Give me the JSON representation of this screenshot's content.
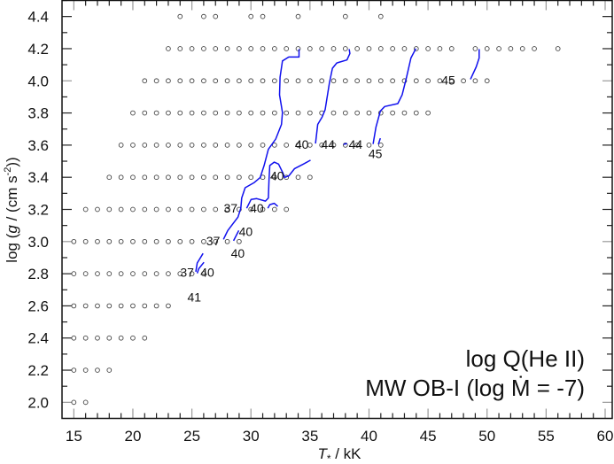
{
  "chart_data": {
    "type": "scatter",
    "title": "",
    "xlabel": {
      "symbol": "T",
      "sub": "*",
      "unit": " / kK"
    },
    "ylabel": {
      "pre": "log (",
      "var": "g",
      "mid": " / (cm s",
      "sup": "-2",
      "post": "))"
    },
    "xlim": [
      14.0,
      60.6
    ],
    "ylim": [
      1.9,
      4.5
    ],
    "xticks": [
      "15",
      "20",
      "25",
      "30",
      "35",
      "40",
      "45",
      "50",
      "55",
      "60"
    ],
    "yticks": [
      "2.0",
      "2.2",
      "2.4",
      "2.6",
      "2.8",
      "3.0",
      "3.2",
      "3.4",
      "3.6",
      "3.8",
      "4.0",
      "4.2",
      "4.4"
    ],
    "grid": false,
    "annotations": [
      "log Q(He II)",
      "MW OB-I (log Ṁ = -7)"
    ],
    "colors": {
      "points": "#444444",
      "contours": "#1010ee",
      "frame": "#111111"
    },
    "model_grid": [
      {
        "logg": 4.4,
        "T": [
          24,
          26,
          27,
          30,
          31,
          34,
          38,
          41
        ]
      },
      {
        "logg": 4.2,
        "T_range": [
          23,
          47
        ],
        "T_extra": [
          49,
          50,
          51,
          52,
          53,
          54,
          56
        ]
      },
      {
        "logg": 4.0,
        "T_range": [
          21,
          50
        ]
      },
      {
        "logg": 3.8,
        "T_range": [
          20,
          45
        ]
      },
      {
        "logg": 3.6,
        "T_range": [
          19,
          41
        ]
      },
      {
        "logg": 3.4,
        "T_range": [
          18,
          35
        ]
      },
      {
        "logg": 3.2,
        "T_range": [
          16,
          33
        ]
      },
      {
        "logg": 3.0,
        "T_range": [
          15,
          29
        ]
      },
      {
        "logg": 2.8,
        "T_range": [
          15,
          26
        ]
      },
      {
        "logg": 2.6,
        "T_range": [
          15,
          23
        ]
      },
      {
        "logg": 2.4,
        "T_range": [
          15,
          21
        ]
      },
      {
        "logg": 2.2,
        "T_range": [
          15,
          18
        ]
      },
      {
        "logg": 2.0,
        "T_range": [
          15,
          16
        ]
      }
    ],
    "contours": [
      {
        "level": 40,
        "points": [
          [
            34.07,
            4.197
          ],
          [
            34.07,
            4.148
          ],
          [
            33.2,
            4.148
          ],
          [
            32.67,
            4.124
          ],
          [
            32.47,
            4.023
          ],
          [
            32.42,
            3.913
          ],
          [
            32.67,
            3.803
          ],
          [
            32.59,
            3.729
          ],
          [
            32.1,
            3.638
          ],
          [
            31.48,
            3.574
          ],
          [
            31.12,
            3.473
          ],
          [
            30.79,
            3.399
          ],
          [
            30.25,
            3.366
          ],
          [
            29.51,
            3.335
          ],
          [
            29.22,
            3.271
          ],
          [
            29.14,
            3.207
          ],
          [
            28.9,
            3.152
          ],
          [
            28.04,
            3.069
          ],
          [
            27.67,
            3.014
          ]
        ]
      },
      {
        "level": 40,
        "points": [
          [
            29.64,
            3.207
          ],
          [
            30.01,
            3.262
          ],
          [
            30.49,
            3.267
          ],
          [
            31.23,
            3.252
          ],
          [
            31.48,
            3.271
          ],
          [
            31.53,
            3.381
          ],
          [
            31.6,
            3.473
          ],
          [
            31.97,
            3.494
          ],
          [
            32.34,
            3.482
          ],
          [
            32.71,
            3.427
          ],
          [
            32.84,
            3.399
          ],
          [
            33.21,
            3.409
          ],
          [
            33.7,
            3.454
          ],
          [
            34.44,
            3.482
          ],
          [
            35.05,
            3.506
          ]
        ]
      },
      {
        "level": 41,
        "points": [
          [
            31.43,
            3.207
          ],
          [
            31.6,
            3.23
          ],
          [
            31.97,
            3.238
          ],
          [
            32.27,
            3.219
          ]
        ]
      },
      {
        "level": 44,
        "points": [
          [
            38.32,
            4.197
          ],
          [
            38.38,
            4.17
          ],
          [
            38.13,
            4.13
          ],
          [
            37.27,
            4.111
          ],
          [
            36.9,
            4.078
          ],
          [
            36.65,
            3.987
          ],
          [
            36.29,
            3.821
          ],
          [
            36.03,
            3.775
          ],
          [
            35.66,
            3.729
          ],
          [
            35.47,
            3.61
          ]
        ]
      },
      {
        "level": 44,
        "points": [
          [
            37.84,
            3.605
          ],
          [
            38.13,
            3.61
          ]
        ]
      },
      {
        "level": 45,
        "points": [
          [
            43.97,
            4.201
          ],
          [
            43.55,
            4.142
          ],
          [
            43.18,
            4.023
          ],
          [
            42.81,
            3.913
          ],
          [
            42.44,
            3.858
          ],
          [
            41.33,
            3.84
          ],
          [
            40.96,
            3.812
          ],
          [
            40.59,
            3.711
          ],
          [
            40.35,
            3.607
          ]
        ]
      },
      {
        "level": 45,
        "points": [
          [
            40.96,
            3.643
          ],
          [
            40.79,
            3.605
          ]
        ]
      },
      {
        "level": 45,
        "points": [
          [
            49.33,
            4.197
          ],
          [
            49.33,
            4.142
          ],
          [
            49.08,
            4.087
          ],
          [
            48.59,
            4.009
          ]
        ]
      },
      {
        "level": 40,
        "points": [
          [
            28.97,
            3.069
          ],
          [
            28.53,
            3.005
          ]
        ]
      },
      {
        "level": 37,
        "points": [
          [
            25.95,
            2.926
          ],
          [
            25.45,
            2.867
          ],
          [
            25.33,
            2.812
          ]
        ]
      },
      {
        "level": 40,
        "points": [
          [
            26.02,
            2.871
          ],
          [
            25.58,
            2.831
          ],
          [
            25.45,
            2.803
          ]
        ]
      }
    ],
    "contour_labels": [
      {
        "text": "40",
        "T": 34.31,
        "logg": 3.605
      },
      {
        "text": "44",
        "T": 36.53,
        "logg": 3.605
      },
      {
        "text": "44",
        "T": 38.87,
        "logg": 3.605
      },
      {
        "text": "45",
        "T": 40.54,
        "logg": 3.546
      },
      {
        "text": "45",
        "T": 46.72,
        "logg": 4.005
      },
      {
        "text": "40",
        "T": 32.22,
        "logg": 3.409
      },
      {
        "text": "37",
        "T": 28.28,
        "logg": 3.207
      },
      {
        "text": "40",
        "T": 30.5,
        "logg": 3.207
      },
      {
        "text": "40",
        "T": 29.56,
        "logg": 3.139
      },
      {
        "text": "37",
        "T": 26.8,
        "logg": 3.005
      },
      {
        "text": "40",
        "T": 27.54,
        "logg": 3.005
      },
      {
        "text": "37",
        "T": 24.59,
        "logg": 2.809
      },
      {
        "text": "40",
        "T": 24.96,
        "logg": 2.809
      },
      {
        "text": "41",
        "T": 25.2,
        "logg": 2.809
      }
    ]
  }
}
